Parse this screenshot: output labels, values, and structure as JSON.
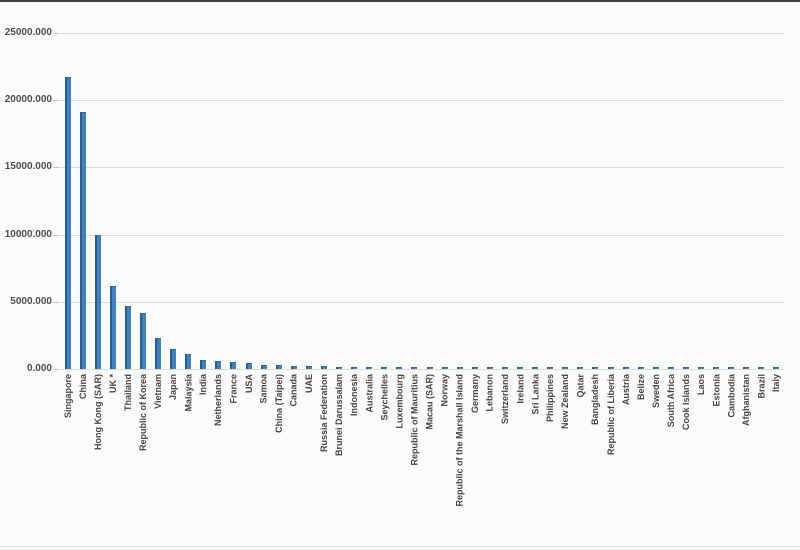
{
  "chart_data": {
    "type": "bar",
    "categories": [
      "Singapore",
      "China",
      "Hong Kong (SAR)",
      "UK *",
      "Thailand",
      "Republic of Korea",
      "Vietnam",
      "Japan",
      "Malaysia",
      "India",
      "Netherlands",
      "France",
      "USA",
      "Samoa",
      "China (Taipei)",
      "Canada",
      "UAE",
      "Russia Federation",
      "Brunei Darussalam",
      "Indonesia",
      "Australia",
      "Seychelles",
      "Luxembourg",
      "Republic of Mauritius",
      "Macau (SAR)",
      "Norway",
      "Republic of the Marshall Island",
      "Germany",
      "Lebanon",
      "Switzerland",
      "Ireland",
      "Sri Lanka",
      "Philippines",
      "New Zealand",
      "Qatar",
      "Bangladesh",
      "Republic of Liberia",
      "Austria",
      "Belize",
      "Sweden",
      "South Africa",
      "Cook Islands",
      "Laos",
      "Estonia",
      "Cambodia",
      "Afghanistan",
      "Brazil",
      "Italy"
    ],
    "values": [
      21700,
      19100,
      10000,
      6200,
      4700,
      4200,
      2300,
      1500,
      1100,
      700,
      620,
      500,
      430,
      330,
      290,
      260,
      230,
      200,
      185,
      170,
      160,
      150,
      140,
      130,
      120,
      115,
      110,
      100,
      95,
      90,
      85,
      80,
      75,
      70,
      65,
      60,
      55,
      52,
      50,
      47,
      45,
      42,
      40,
      37,
      35,
      32,
      30,
      28
    ],
    "xlabel": "",
    "ylabel": "",
    "ylim": [
      0,
      25000
    ],
    "ytick_step": 5000,
    "ytick_labels": [
      "0.000",
      "5000.000",
      "10000.000",
      "15000.000",
      "20000.000",
      "25000.000"
    ],
    "grid": true,
    "legend": "none",
    "bar_fill_color": "#3f82c4",
    "bar_edge_color": "#275e94",
    "gridline_color": "#dcdcda",
    "axis_label_color": "#454545"
  }
}
